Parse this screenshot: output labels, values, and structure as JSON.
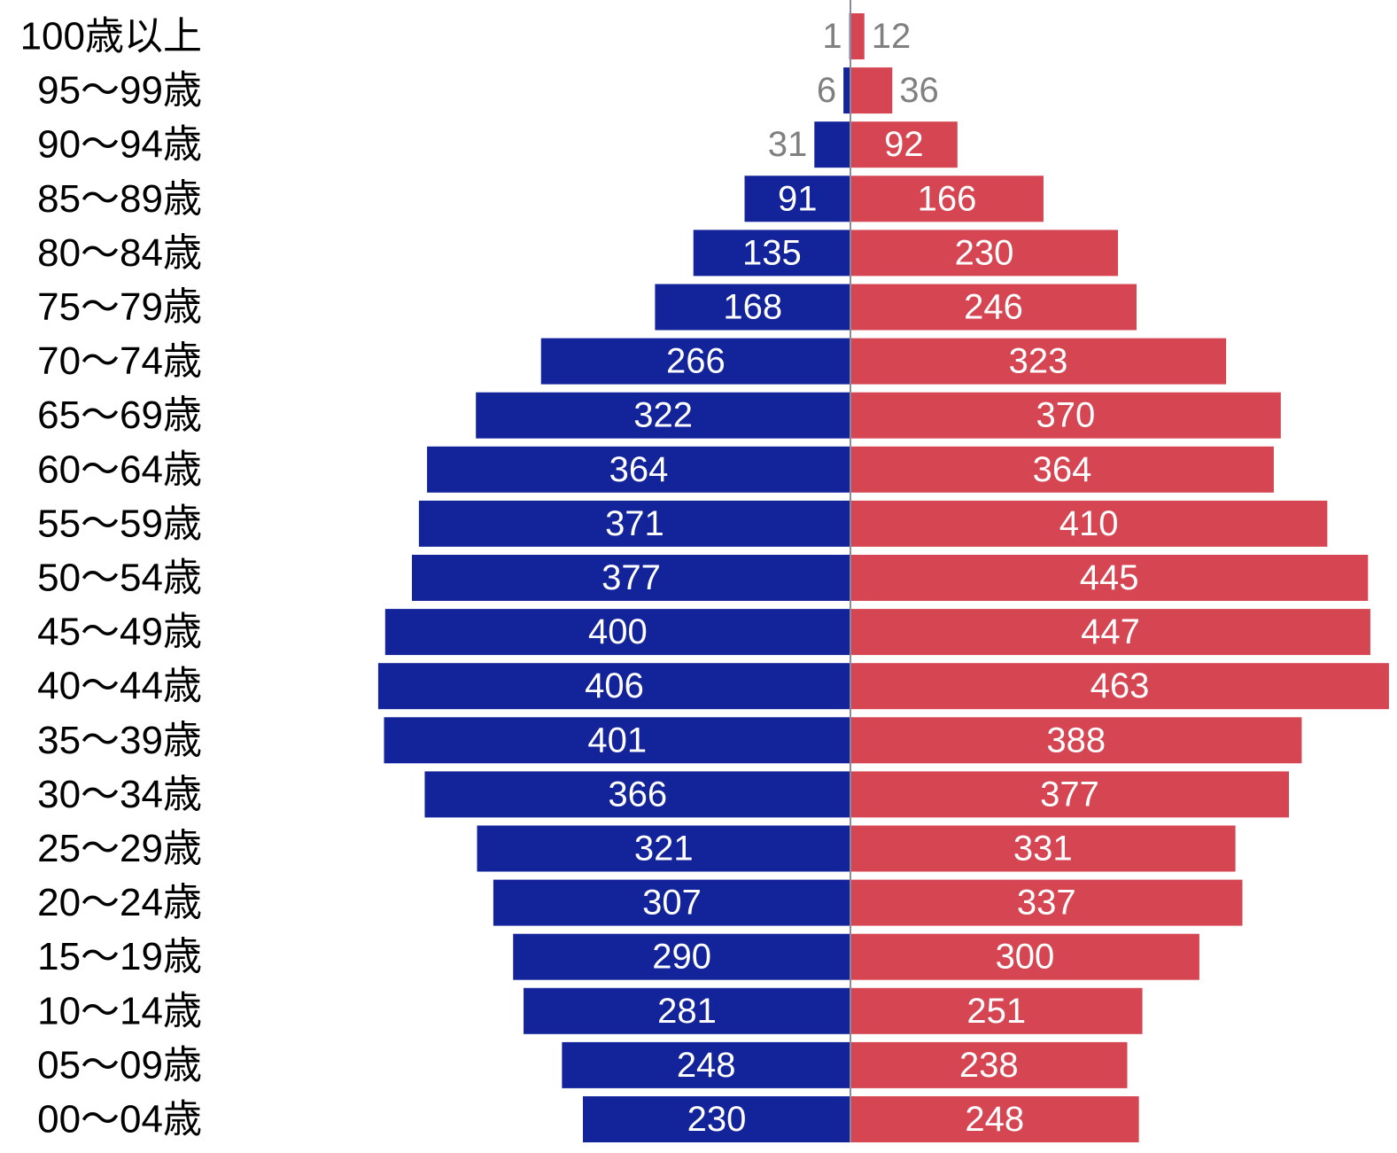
{
  "colors": {
    "male": "#13239a",
    "female": "#d64552",
    "axis": "#8a8a9a",
    "label_inside": "#ffffff",
    "label_outside": "#808080"
  },
  "chart_data": {
    "type": "bar",
    "orientation": "horizontal",
    "layout": "population-pyramid",
    "title": "",
    "xlabel": "",
    "ylabel": "",
    "legend": "none",
    "grid": false,
    "categories": [
      "100歳以上",
      "95〜99歳",
      "90〜94歳",
      "85〜89歳",
      "80〜84歳",
      "75〜79歳",
      "70〜74歳",
      "65〜69歳",
      "60〜64歳",
      "55〜59歳",
      "50〜54歳",
      "45〜49歳",
      "40〜44歳",
      "35〜39歳",
      "30〜34歳",
      "25〜29歳",
      "20〜24歳",
      "15〜19歳",
      "10〜14歳",
      "05〜09歳",
      "00〜04歳"
    ],
    "series": [
      {
        "values": [
          1,
          6,
          31,
          91,
          135,
          168,
          266,
          322,
          364,
          371,
          377,
          400,
          406,
          401,
          366,
          321,
          307,
          290,
          281,
          248,
          230
        ]
      },
      {
        "values": [
          12,
          36,
          92,
          166,
          230,
          246,
          323,
          370,
          364,
          410,
          445,
          447,
          463,
          388,
          377,
          331,
          337,
          300,
          251,
          238,
          248
        ]
      }
    ]
  }
}
